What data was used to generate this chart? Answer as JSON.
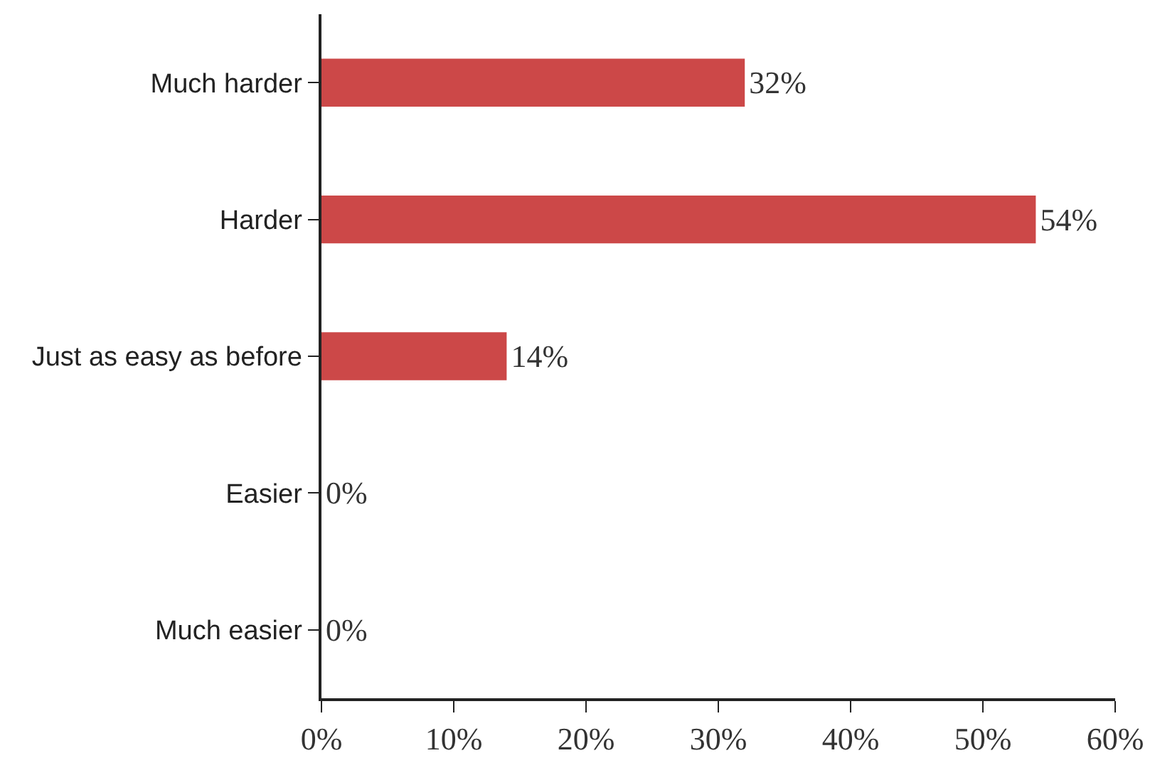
{
  "chart_data": {
    "type": "bar",
    "orientation": "horizontal",
    "categories": [
      "Much harder",
      "Harder",
      "Just as easy as before",
      "Easier",
      "Much easier"
    ],
    "values": [
      32,
      54,
      14,
      0,
      0
    ],
    "color": "#cc4848",
    "value_labels": [
      "32%",
      "54%",
      "14%",
      "0%",
      "0%"
    ],
    "xlim": [
      0,
      60
    ],
    "xticks": [
      {
        "value": 0,
        "label": "0%"
      },
      {
        "value": 10,
        "label": "10%"
      },
      {
        "value": 20,
        "label": "20%"
      },
      {
        "value": 30,
        "label": "30%"
      },
      {
        "value": 40,
        "label": "40%"
      },
      {
        "value": 50,
        "label": "50%"
      },
      {
        "value": 60,
        "label": "60%"
      }
    ]
  }
}
